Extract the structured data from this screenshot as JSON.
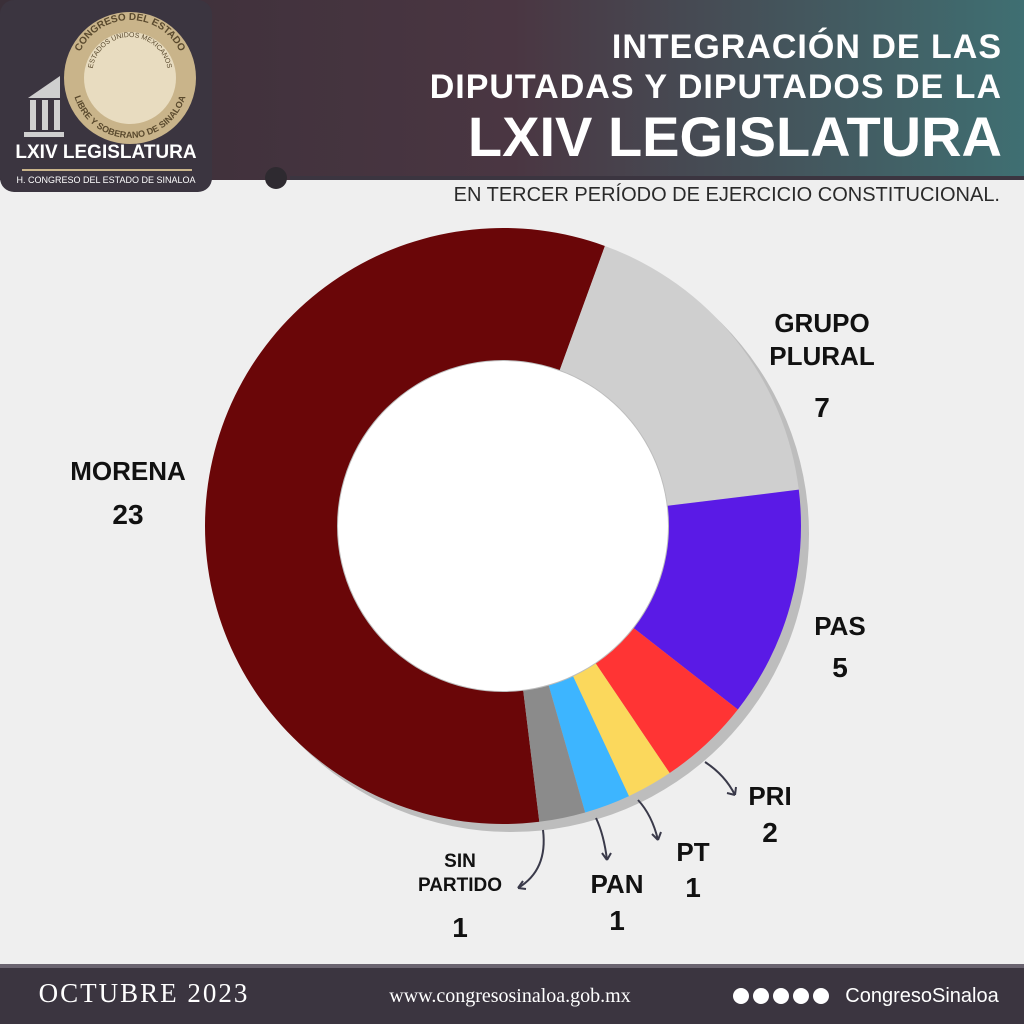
{
  "header": {
    "title_line1": "INTEGRACIÓN DE LAS",
    "title_line2": "DIPUTADAS Y DIPUTADOS DE LA",
    "title_line3": "LXIV LEGISLATURA",
    "subtitle": "EN TERCER PERÍODO DE EJERCICIO CONSTITUCIONAL.",
    "logo_title": "LXIV LEGISLATURA",
    "logo_subtitle": "H. CONGRESO DEL ESTADO DE SINALOA",
    "seal_top": "CONGRESO DEL ESTADO",
    "seal_inner": "ESTADOS UNIDOS MEXICANOS",
    "seal_bottom": "LIBRE Y SOBERANO DE SINALOA"
  },
  "chart_data": {
    "type": "donut",
    "categories": [
      "MORENA",
      "GRUPO PLURAL",
      "PAS",
      "PRI",
      "PT",
      "PAN",
      "SIN PARTIDO"
    ],
    "values": [
      23,
      7,
      5,
      2,
      1,
      1,
      1
    ],
    "colors": [
      "#6a0608",
      "#cfcfcf",
      "#5a1ae6",
      "#ff3434",
      "#fbd85c",
      "#3db5ff",
      "#8b8b8b"
    ]
  },
  "footer": {
    "date": "OCTUBRE 2023",
    "website": "www.congresosinaloa.gob.mx",
    "social": "CongresoSinaloa"
  }
}
